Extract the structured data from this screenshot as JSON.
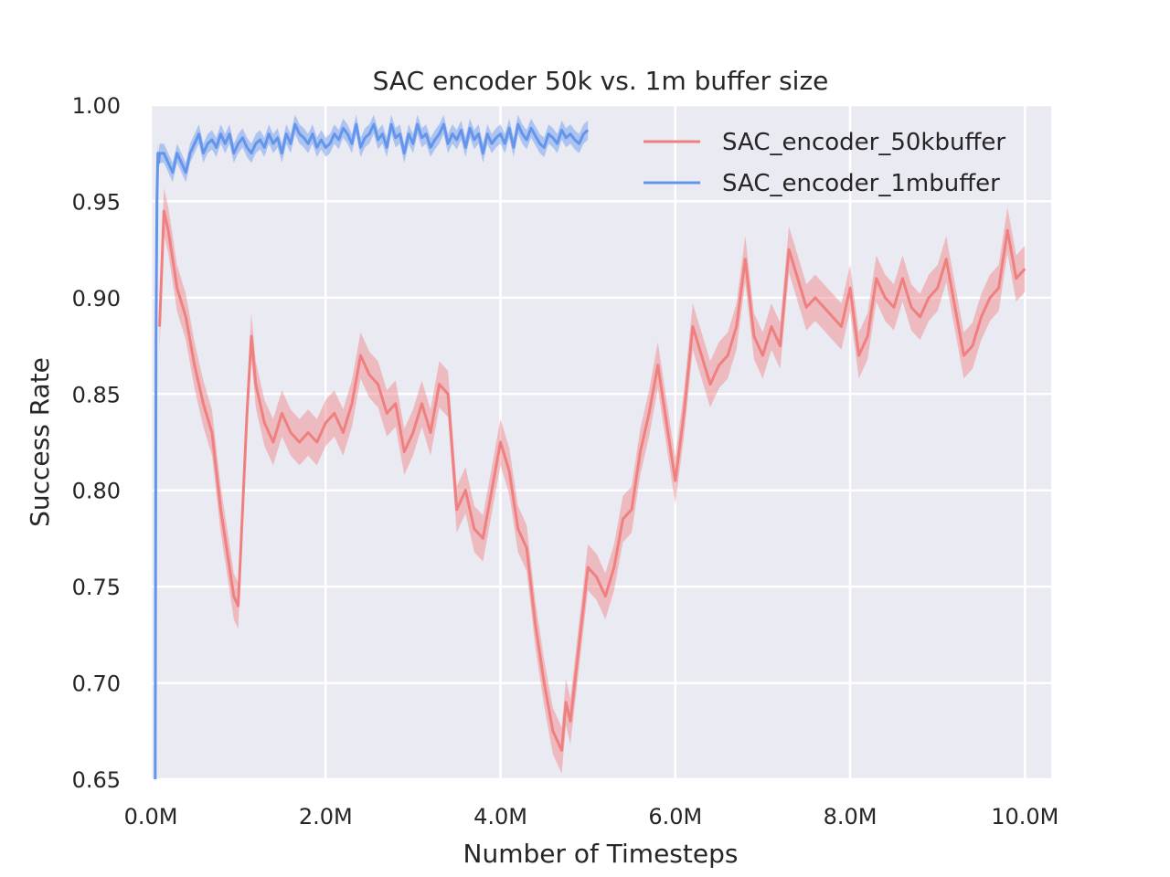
{
  "chart_data": {
    "type": "line",
    "title": "SAC encoder 50k vs. 1m buffer size",
    "xlabel": "Number of Timesteps",
    "ylabel": "Success Rate",
    "xlim": [
      0,
      10300000
    ],
    "ylim": [
      0.65,
      1.0
    ],
    "xticks": [
      0,
      2000000,
      4000000,
      6000000,
      8000000,
      10000000
    ],
    "xtick_labels": [
      "0.0M",
      "2.0M",
      "4.0M",
      "6.0M",
      "8.0M",
      "10.0M"
    ],
    "yticks": [
      0.65,
      0.7,
      0.75,
      0.8,
      0.85,
      0.9,
      0.95,
      1.0
    ],
    "ytick_labels": [
      "0.65",
      "0.70",
      "0.75",
      "0.80",
      "0.85",
      "0.90",
      "0.95",
      "1.00"
    ],
    "grid": true,
    "legend_position": "top-right",
    "series": [
      {
        "name": "SAC_encoder_50kbuffer",
        "color": "#f08080",
        "band_halfwidth": 0.012,
        "x": [
          100000,
          150000,
          200000,
          300000,
          400000,
          500000,
          600000,
          700000,
          800000,
          900000,
          950000,
          1000000,
          1100000,
          1150000,
          1200000,
          1300000,
          1400000,
          1500000,
          1600000,
          1700000,
          1800000,
          1900000,
          2000000,
          2100000,
          2200000,
          2300000,
          2400000,
          2500000,
          2600000,
          2700000,
          2800000,
          2900000,
          3000000,
          3100000,
          3200000,
          3300000,
          3400000,
          3500000,
          3600000,
          3700000,
          3800000,
          3900000,
          4000000,
          4100000,
          4200000,
          4300000,
          4400000,
          4500000,
          4600000,
          4700000,
          4750000,
          4800000,
          4900000,
          5000000,
          5100000,
          5200000,
          5300000,
          5400000,
          5500000,
          5600000,
          5700000,
          5800000,
          5900000,
          6000000,
          6100000,
          6200000,
          6300000,
          6400000,
          6500000,
          6600000,
          6700000,
          6800000,
          6900000,
          7000000,
          7100000,
          7200000,
          7300000,
          7400000,
          7500000,
          7600000,
          7700000,
          7800000,
          7900000,
          8000000,
          8100000,
          8200000,
          8300000,
          8400000,
          8500000,
          8600000,
          8700000,
          8800000,
          8900000,
          9000000,
          9100000,
          9200000,
          9300000,
          9400000,
          9500000,
          9600000,
          9700000,
          9800000,
          9900000,
          10000000
        ],
        "y": [
          0.885,
          0.945,
          0.935,
          0.905,
          0.89,
          0.865,
          0.845,
          0.83,
          0.79,
          0.76,
          0.745,
          0.74,
          0.84,
          0.88,
          0.855,
          0.835,
          0.825,
          0.84,
          0.83,
          0.825,
          0.83,
          0.825,
          0.835,
          0.84,
          0.83,
          0.845,
          0.87,
          0.86,
          0.855,
          0.84,
          0.845,
          0.82,
          0.83,
          0.845,
          0.83,
          0.855,
          0.85,
          0.79,
          0.8,
          0.78,
          0.775,
          0.8,
          0.825,
          0.81,
          0.78,
          0.77,
          0.73,
          0.7,
          0.675,
          0.665,
          0.69,
          0.68,
          0.72,
          0.76,
          0.755,
          0.745,
          0.76,
          0.785,
          0.79,
          0.82,
          0.84,
          0.865,
          0.835,
          0.805,
          0.84,
          0.885,
          0.87,
          0.855,
          0.865,
          0.87,
          0.885,
          0.92,
          0.88,
          0.87,
          0.885,
          0.875,
          0.925,
          0.91,
          0.895,
          0.9,
          0.895,
          0.89,
          0.885,
          0.905,
          0.87,
          0.88,
          0.91,
          0.9,
          0.895,
          0.91,
          0.895,
          0.89,
          0.9,
          0.905,
          0.92,
          0.895,
          0.87,
          0.875,
          0.89,
          0.9,
          0.905,
          0.935,
          0.91,
          0.915
        ]
      },
      {
        "name": "SAC_encoder_1mbuffer",
        "color": "#6495ed",
        "band_halfwidth": 0.005,
        "x": [
          50000,
          60000,
          70000,
          80000,
          90000,
          100000,
          150000,
          200000,
          250000,
          300000,
          350000,
          400000,
          450000,
          500000,
          550000,
          600000,
          650000,
          700000,
          750000,
          800000,
          850000,
          900000,
          950000,
          1000000,
          1050000,
          1100000,
          1150000,
          1200000,
          1250000,
          1300000,
          1350000,
          1400000,
          1450000,
          1500000,
          1550000,
          1600000,
          1650000,
          1700000,
          1750000,
          1800000,
          1850000,
          1900000,
          1950000,
          2000000,
          2050000,
          2100000,
          2150000,
          2200000,
          2250000,
          2300000,
          2350000,
          2400000,
          2450000,
          2500000,
          2550000,
          2600000,
          2650000,
          2700000,
          2750000,
          2800000,
          2850000,
          2900000,
          2950000,
          3000000,
          3050000,
          3100000,
          3150000,
          3200000,
          3250000,
          3300000,
          3350000,
          3400000,
          3450000,
          3500000,
          3550000,
          3600000,
          3650000,
          3700000,
          3750000,
          3800000,
          3850000,
          3900000,
          3950000,
          4000000,
          4050000,
          4100000,
          4150000,
          4200000,
          4250000,
          4300000,
          4350000,
          4400000,
          4450000,
          4500000,
          4550000,
          4600000,
          4650000,
          4700000,
          4750000,
          4800000,
          4850000,
          4900000,
          4950000,
          5000000
        ],
        "y": [
          0.65,
          0.88,
          0.95,
          0.975,
          0.97,
          0.975,
          0.975,
          0.97,
          0.965,
          0.975,
          0.97,
          0.965,
          0.975,
          0.98,
          0.985,
          0.975,
          0.98,
          0.982,
          0.978,
          0.985,
          0.98,
          0.985,
          0.975,
          0.98,
          0.983,
          0.978,
          0.975,
          0.98,
          0.982,
          0.978,
          0.985,
          0.98,
          0.983,
          0.975,
          0.985,
          0.98,
          0.99,
          0.985,
          0.983,
          0.98,
          0.985,
          0.978,
          0.982,
          0.978,
          0.98,
          0.985,
          0.982,
          0.988,
          0.985,
          0.98,
          0.99,
          0.978,
          0.983,
          0.985,
          0.99,
          0.982,
          0.985,
          0.978,
          0.99,
          0.983,
          0.985,
          0.975,
          0.985,
          0.98,
          0.99,
          0.983,
          0.985,
          0.978,
          0.982,
          0.985,
          0.99,
          0.98,
          0.985,
          0.982,
          0.987,
          0.978,
          0.988,
          0.982,
          0.985,
          0.975,
          0.985,
          0.98,
          0.983,
          0.985,
          0.98,
          0.988,
          0.978,
          0.99,
          0.985,
          0.982,
          0.988,
          0.984,
          0.98,
          0.978,
          0.985,
          0.983,
          0.98,
          0.987,
          0.983,
          0.985,
          0.982,
          0.98,
          0.985,
          0.987
        ]
      }
    ]
  }
}
